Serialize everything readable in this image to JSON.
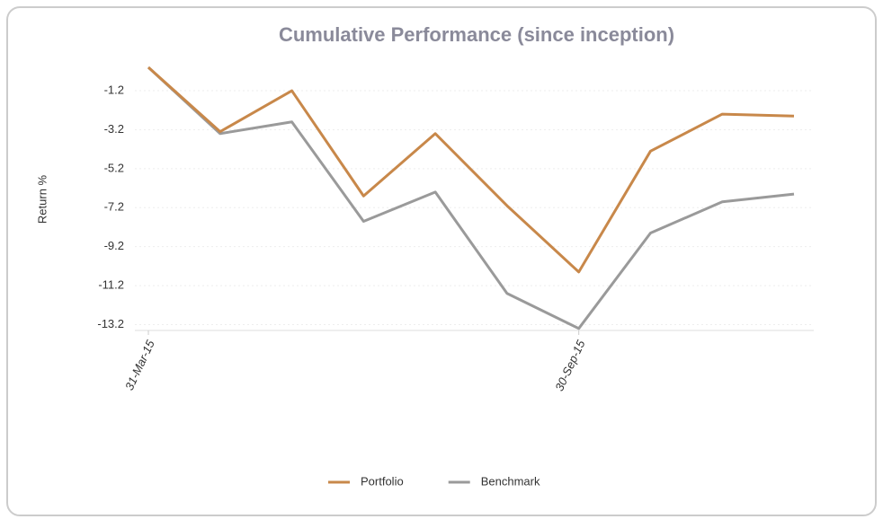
{
  "chart_data": {
    "type": "line",
    "title": "Cumulative Performance (since inception)",
    "y_label": "Return %",
    "categories": [
      "31-Mar-15",
      null,
      null,
      null,
      null,
      null,
      "30-Sep-15",
      null,
      null,
      null
    ],
    "series": [
      {
        "name": "Portfolio",
        "color": "#c8884a",
        "values": [
          0.0,
          -3.3,
          -1.2,
          -6.6,
          -3.4,
          -7.1,
          -10.5,
          -4.3,
          -2.4,
          -2.5
        ]
      },
      {
        "name": "Benchmark",
        "color": "#9a9a9a",
        "values": [
          0.0,
          -3.4,
          -2.8,
          -7.9,
          -6.4,
          -11.6,
          -13.4,
          -8.5,
          -6.9,
          -6.5
        ]
      }
    ],
    "ylim": [
      -13.5,
      0.0
    ],
    "yticks": [
      -1.2,
      -3.2,
      -5.2,
      -7.2,
      -9.2,
      -11.2,
      -13.2
    ],
    "grid": true,
    "legend": "bottom"
  }
}
